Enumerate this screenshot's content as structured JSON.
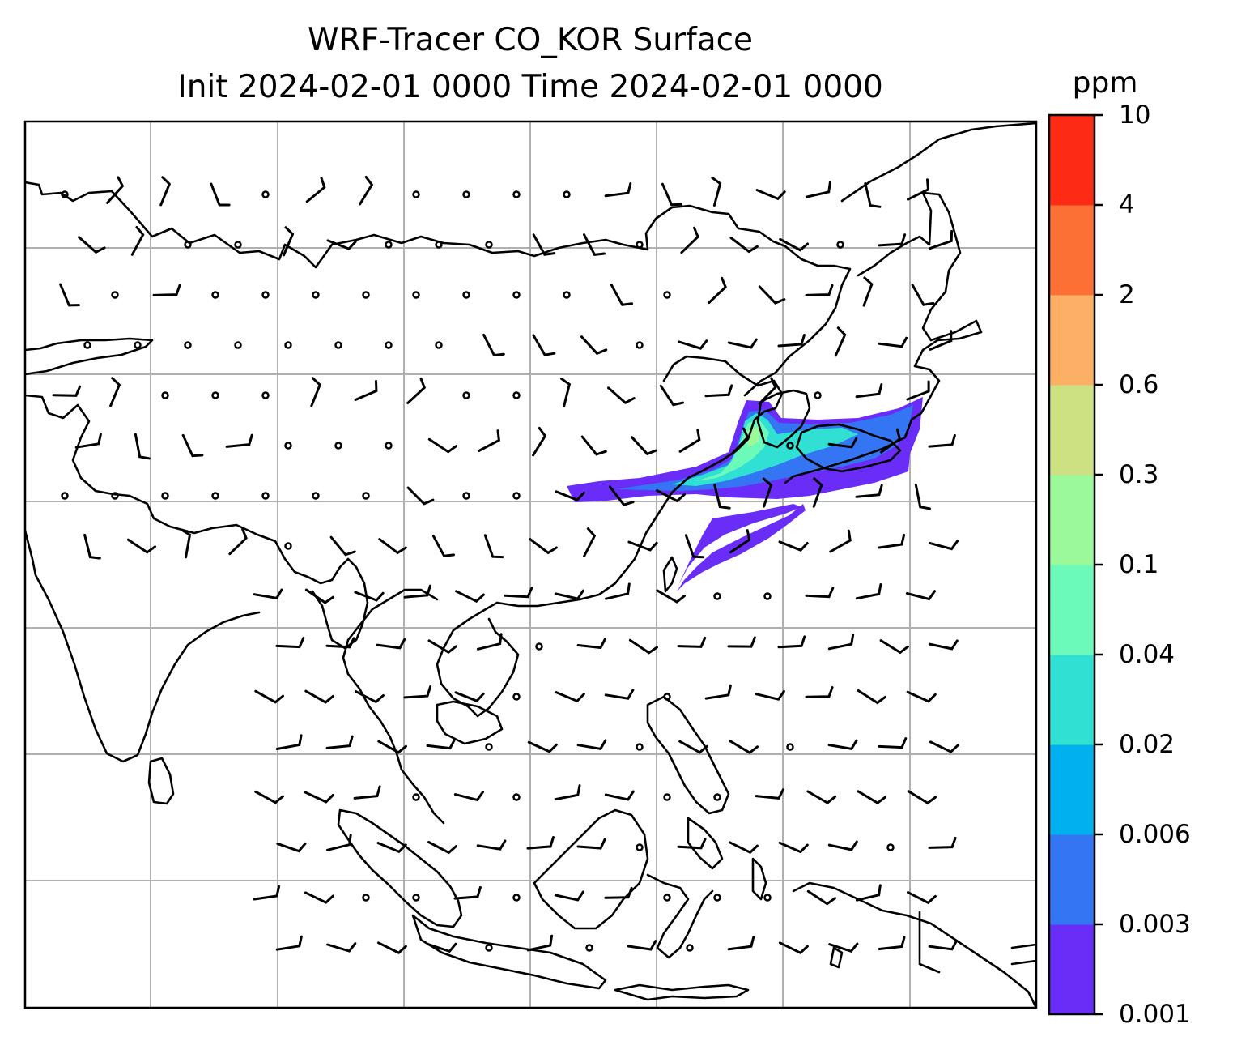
{
  "title": {
    "line1": "WRF-Tracer CO_KOR Surface",
    "line2": "Init 2024-02-01 0000 Time 2024-02-01 0000"
  },
  "colorbar": {
    "unit": "ppm",
    "levels": [
      "0.001",
      "0.003",
      "0.006",
      "0.02",
      "0.04",
      "0.1",
      "0.3",
      "0.6",
      "2",
      "4",
      "10"
    ],
    "colors": [
      "#6a2cf7",
      "#3375f3",
      "#00b0ef",
      "#2fe0d3",
      "#6cfabb",
      "#9cf99a",
      "#cde082",
      "#fdb065",
      "#fd7035",
      "#fd2a15"
    ]
  },
  "map": {
    "gridlines": true,
    "layers": [
      "coastlines",
      "wind-barbs",
      "co-tracer-plume"
    ]
  }
}
